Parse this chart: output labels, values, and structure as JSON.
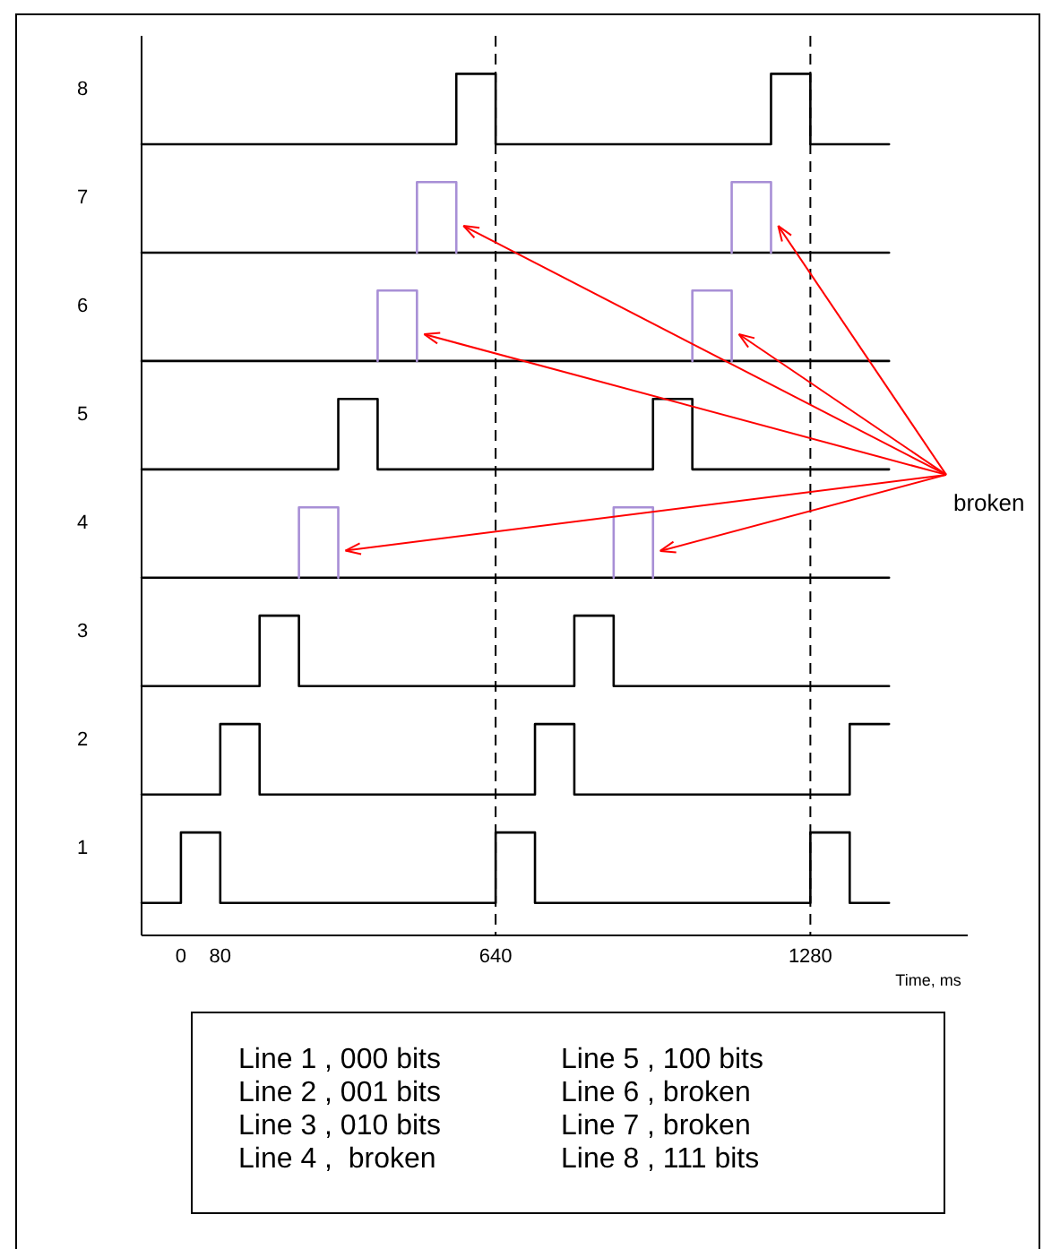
{
  "chart_data": {
    "type": "line",
    "xlabel": "Time, ms",
    "xlim": [
      -80,
      1600
    ],
    "xticks": [
      0,
      80,
      640,
      1280
    ],
    "ylim": [
      0.2,
      8.5
    ],
    "yticks": [
      1,
      2,
      3,
      4,
      5,
      6,
      7,
      8
    ],
    "grid": false,
    "marker": "none",
    "line_style": "solid",
    "ref_lines": [
      {
        "axis": "x",
        "value": 640,
        "line_style": "dashed",
        "color": "#000000"
      },
      {
        "axis": "x",
        "value": 1280,
        "line_style": "dashed",
        "color": "#000000"
      }
    ],
    "series": [
      {
        "color": "#000000",
        "x": [
          -80,
          0,
          0,
          80,
          80,
          640,
          640,
          720,
          720,
          1280,
          1280,
          1360,
          1360,
          1440
        ],
        "values": [
          0.5,
          0.5,
          1.15,
          1.15,
          0.5,
          0.5,
          1.15,
          1.15,
          0.5,
          0.5,
          1.15,
          1.15,
          0.5,
          0.5
        ]
      },
      {
        "color": "#000000",
        "x": [
          -80,
          80,
          80,
          160,
          160,
          720,
          720,
          800,
          800,
          1360,
          1360,
          1440
        ],
        "values": [
          1.5,
          1.5,
          2.15,
          2.15,
          1.5,
          1.5,
          2.15,
          2.15,
          1.5,
          1.5,
          2.15,
          2.15
        ]
      },
      {
        "color": "#000000",
        "x": [
          -80,
          160,
          160,
          240,
          240,
          800,
          800,
          880,
          880,
          1440
        ],
        "values": [
          2.5,
          2.5,
          3.15,
          3.15,
          2.5,
          2.5,
          3.15,
          3.15,
          2.5,
          2.5
        ]
      },
      {
        "color": "#000000",
        "x": [
          -80,
          1440
        ],
        "values": [
          3.5,
          3.5
        ]
      },
      {
        "color": "#a88fd6",
        "x": [
          240,
          240,
          320,
          320,
          600,
          880,
          880,
          960,
          960
        ],
        "values": [
          3.5,
          4.15,
          4.15,
          3.5,
          null,
          3.5,
          4.15,
          4.15,
          3.5
        ]
      },
      {
        "color": "#000000",
        "x": [
          -80,
          320,
          320,
          400,
          400,
          960,
          960,
          1040,
          1040,
          1440
        ],
        "values": [
          4.5,
          4.5,
          5.15,
          5.15,
          4.5,
          4.5,
          5.15,
          5.15,
          4.5,
          4.5
        ]
      },
      {
        "color": "#000000",
        "x": [
          -80,
          1440
        ],
        "values": [
          5.5,
          5.5
        ]
      },
      {
        "color": "#a88fd6",
        "x": [
          400,
          400,
          480,
          480,
          760,
          1040,
          1040,
          1120,
          1120
        ],
        "values": [
          5.5,
          6.15,
          6.15,
          5.5,
          null,
          5.5,
          6.15,
          6.15,
          5.5
        ]
      },
      {
        "color": "#000000",
        "x": [
          -80,
          1440
        ],
        "values": [
          6.5,
          6.5
        ]
      },
      {
        "color": "#a88fd6",
        "x": [
          480,
          480,
          560,
          560,
          840,
          1120,
          1120,
          1200,
          1200
        ],
        "values": [
          6.5,
          7.15,
          7.15,
          6.5,
          null,
          6.5,
          7.15,
          7.15,
          6.5
        ]
      },
      {
        "color": "#000000",
        "x": [
          -80,
          560,
          560,
          640,
          640,
          1200,
          1200,
          1280,
          1280,
          1440
        ],
        "values": [
          7.5,
          7.5,
          8.15,
          8.15,
          7.5,
          7.5,
          8.15,
          8.15,
          7.5,
          7.5
        ]
      }
    ],
    "annotations": [
      {
        "text": "broken",
        "x": 320,
        "y": 3.75
      },
      "Line 1 , 000 bits",
      "Line 2 , 001 bits",
      "Line 3 , 010 bits",
      "Line 4 ,  broken",
      "Line 5 , 100 bits",
      "Line 6 , broken",
      "Line 7 , broken",
      "Line 8 , 111 bits"
    ]
  }
}
